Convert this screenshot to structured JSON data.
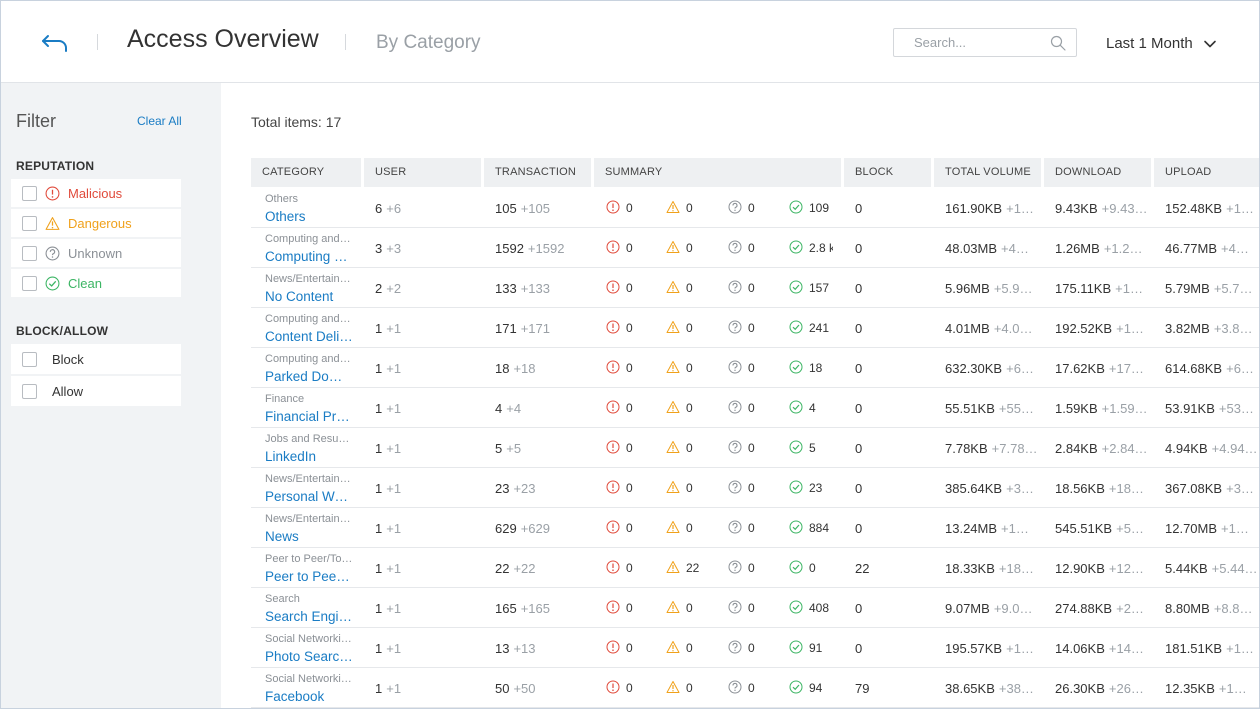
{
  "header": {
    "title": "Access Overview",
    "subtitle": "By Category",
    "search_placeholder": "Search...",
    "period": "Last 1 Month"
  },
  "sidebar": {
    "title": "Filter",
    "clear_all": "Clear All",
    "reputation_title": "REPUTATION",
    "reputation": [
      {
        "label": "Malicious",
        "color": "#e04a3b",
        "icon": "alert-circle-icon"
      },
      {
        "label": "Dangerous",
        "color": "#f0a11b",
        "icon": "warning-triangle-icon"
      },
      {
        "label": "Unknown",
        "color": "#8b9096",
        "icon": "question-circle-icon"
      },
      {
        "label": "Clean",
        "color": "#3cb564",
        "icon": "check-circle-icon"
      }
    ],
    "blockallow_title": "BLOCK/ALLOW",
    "blockallow": [
      {
        "label": "Block"
      },
      {
        "label": "Allow"
      }
    ]
  },
  "main": {
    "total": "Total items: 17",
    "columns": [
      "CATEGORY",
      "USER",
      "TRANSACTION",
      "SUMMARY",
      "BLOCK",
      "TOTAL VOLUME",
      "DOWNLOAD",
      "UPLOAD"
    ],
    "rows": [
      {
        "parent": "Others",
        "name": "Others",
        "user": "6",
        "user_d": "+6",
        "tx": "105",
        "tx_d": "+105",
        "mal": "0",
        "dang": "0",
        "unk": "0",
        "clean": "109",
        "block": "0",
        "total": "161.90KB",
        "total_d": "+1…",
        "down": "9.43KB",
        "down_d": "+9.43…",
        "up": "152.48KB",
        "up_d": "+1…"
      },
      {
        "parent": "Computing and…",
        "name": "Computing a…",
        "user": "3",
        "user_d": "+3",
        "tx": "1592",
        "tx_d": "+1592",
        "mal": "0",
        "dang": "0",
        "unk": "0",
        "clean": "2.8 k",
        "block": "0",
        "total": "48.03MB",
        "total_d": "+4…",
        "down": "1.26MB",
        "down_d": "+1.2…",
        "up": "46.77MB",
        "up_d": "+4…"
      },
      {
        "parent": "News/Entertain…",
        "name": "No Content",
        "user": "2",
        "user_d": "+2",
        "tx": "133",
        "tx_d": "+133",
        "mal": "0",
        "dang": "0",
        "unk": "0",
        "clean": "157",
        "block": "0",
        "total": "5.96MB",
        "total_d": "+5.9…",
        "down": "175.11KB",
        "down_d": "+1…",
        "up": "5.79MB",
        "up_d": "+5.7…"
      },
      {
        "parent": "Computing and…",
        "name": "Content Deli…",
        "user": "1",
        "user_d": "+1",
        "tx": "171",
        "tx_d": "+171",
        "mal": "0",
        "dang": "0",
        "unk": "0",
        "clean": "241",
        "block": "0",
        "total": "4.01MB",
        "total_d": "+4.0…",
        "down": "192.52KB",
        "down_d": "+1…",
        "up": "3.82MB",
        "up_d": "+3.8…"
      },
      {
        "parent": "Computing and…",
        "name": "Parked Dom…",
        "user": "1",
        "user_d": "+1",
        "tx": "18",
        "tx_d": "+18",
        "mal": "0",
        "dang": "0",
        "unk": "0",
        "clean": "18",
        "block": "0",
        "total": "632.30KB",
        "total_d": "+6…",
        "down": "17.62KB",
        "down_d": "+17…",
        "up": "614.68KB",
        "up_d": "+6…"
      },
      {
        "parent": "Finance",
        "name": "Financial Pro…",
        "user": "1",
        "user_d": "+1",
        "tx": "4",
        "tx_d": "+4",
        "mal": "0",
        "dang": "0",
        "unk": "0",
        "clean": "4",
        "block": "0",
        "total": "55.51KB",
        "total_d": "+55…",
        "down": "1.59KB",
        "down_d": "+1.59…",
        "up": "53.91KB",
        "up_d": "+53…"
      },
      {
        "parent": "Jobs and Resu…",
        "name": "LinkedIn",
        "user": "1",
        "user_d": "+1",
        "tx": "5",
        "tx_d": "+5",
        "mal": "0",
        "dang": "0",
        "unk": "0",
        "clean": "5",
        "block": "0",
        "total": "7.78KB",
        "total_d": "+7.78…",
        "down": "2.84KB",
        "down_d": "+2.84…",
        "up": "4.94KB",
        "up_d": "+4.94…"
      },
      {
        "parent": "News/Entertain…",
        "name": "Personal We…",
        "user": "1",
        "user_d": "+1",
        "tx": "23",
        "tx_d": "+23",
        "mal": "0",
        "dang": "0",
        "unk": "0",
        "clean": "23",
        "block": "0",
        "total": "385.64KB",
        "total_d": "+3…",
        "down": "18.56KB",
        "down_d": "+18…",
        "up": "367.08KB",
        "up_d": "+3…"
      },
      {
        "parent": "News/Entertain…",
        "name": "News",
        "user": "1",
        "user_d": "+1",
        "tx": "629",
        "tx_d": "+629",
        "mal": "0",
        "dang": "0",
        "unk": "0",
        "clean": "884",
        "block": "0",
        "total": "13.24MB",
        "total_d": "+1…",
        "down": "545.51KB",
        "down_d": "+5…",
        "up": "12.70MB",
        "up_d": "+1…"
      },
      {
        "parent": "Peer to Peer/To…",
        "name": "Peer to Peer/…",
        "user": "1",
        "user_d": "+1",
        "tx": "22",
        "tx_d": "+22",
        "mal": "0",
        "dang": "22",
        "unk": "0",
        "clean": "0",
        "block": "22",
        "total": "18.33KB",
        "total_d": "+18…",
        "down": "12.90KB",
        "down_d": "+12…",
        "up": "5.44KB",
        "up_d": "+5.44…"
      },
      {
        "parent": "Search",
        "name": "Search Engin…",
        "user": "1",
        "user_d": "+1",
        "tx": "165",
        "tx_d": "+165",
        "mal": "0",
        "dang": "0",
        "unk": "0",
        "clean": "408",
        "block": "0",
        "total": "9.07MB",
        "total_d": "+9.0…",
        "down": "274.88KB",
        "down_d": "+2…",
        "up": "8.80MB",
        "up_d": "+8.8…"
      },
      {
        "parent": "Social Networki…",
        "name": "Photo Searc…",
        "user": "1",
        "user_d": "+1",
        "tx": "13",
        "tx_d": "+13",
        "mal": "0",
        "dang": "0",
        "unk": "0",
        "clean": "91",
        "block": "0",
        "total": "195.57KB",
        "total_d": "+1…",
        "down": "14.06KB",
        "down_d": "+14…",
        "up": "181.51KB",
        "up_d": "+1…"
      },
      {
        "parent": "Social Networki…",
        "name": "Facebook",
        "user": "1",
        "user_d": "+1",
        "tx": "50",
        "tx_d": "+50",
        "mal": "0",
        "dang": "0",
        "unk": "0",
        "clean": "94",
        "block": "79",
        "total": "38.65KB",
        "total_d": "+38…",
        "down": "26.30KB",
        "down_d": "+26…",
        "up": "12.35KB",
        "up_d": "+1…"
      }
    ]
  },
  "colors": {
    "accent": "#1a7cc4",
    "malicious": "#e04a3b",
    "dangerous": "#f0a11b",
    "unknown": "#8b9096",
    "clean": "#3cb564"
  }
}
